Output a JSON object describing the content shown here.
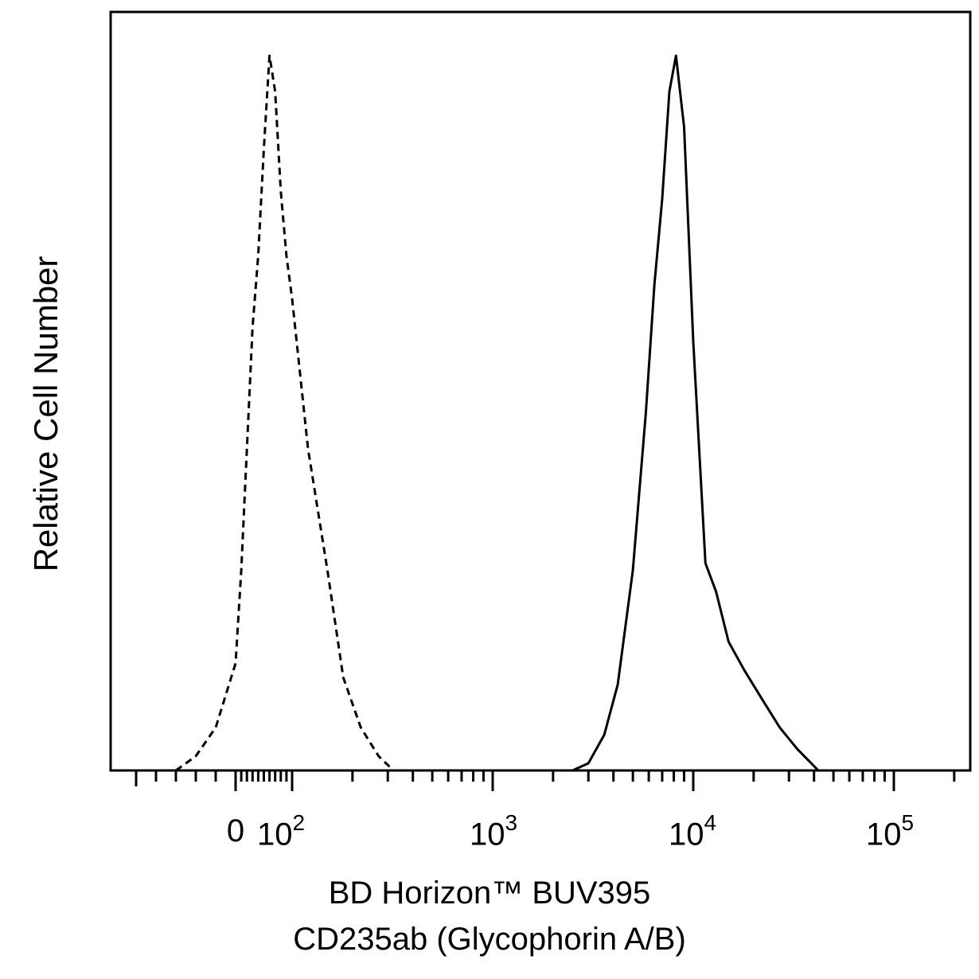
{
  "chart_data": {
    "type": "area",
    "title": "",
    "xlabel_line1": "BD Horizon™ BUV395",
    "xlabel_line2": "CD235ab (Glycophorin A/B)",
    "ylabel": "Relative Cell Number",
    "x_scale": "biexponential",
    "x_ticks": [
      {
        "value": 0,
        "label": "0"
      },
      {
        "value": 100,
        "base": "10",
        "exp": "2"
      },
      {
        "value": 1000,
        "base": "10",
        "exp": "3"
      },
      {
        "value": 10000,
        "base": "10",
        "exp": "4"
      },
      {
        "value": 100000,
        "base": "10",
        "exp": "5"
      }
    ],
    "grid": false,
    "legend": "none",
    "series": [
      {
        "style": "dashed",
        "x": [
          -60,
          -40,
          -20,
          0,
          10,
          20,
          30,
          40,
          50,
          60,
          70,
          80,
          90,
          100,
          120,
          150,
          180,
          220,
          270,
          320
        ],
        "y": [
          0,
          2,
          6,
          15,
          28,
          45,
          62,
          72,
          87,
          100,
          95,
          81,
          72,
          66,
          45,
          28,
          13,
          6,
          2,
          0
        ]
      },
      {
        "style": "solid",
        "x": [
          2500,
          3000,
          3600,
          4200,
          5000,
          5800,
          6400,
          7000,
          7600,
          8200,
          9000,
          10000,
          11500,
          13000,
          15000,
          18000,
          22000,
          27000,
          33000,
          42000
        ],
        "y": [
          0,
          1,
          5,
          12,
          28,
          50,
          68,
          80,
          95,
          100,
          90,
          60,
          29,
          25,
          18,
          14,
          10,
          6,
          3,
          0
        ]
      }
    ]
  }
}
